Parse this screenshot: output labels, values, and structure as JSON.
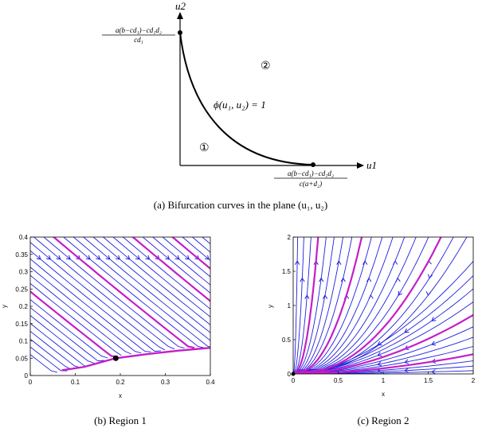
{
  "panel_a": {
    "y_axis_label": "u2",
    "x_axis_label": "u1",
    "top_label_num": "a(b−cd₁)−cd₁d₂",
    "top_label_den": "cd₁",
    "bottom_label_num": "a(b−cd₁)−cd₁d₂",
    "bottom_label_den": "c(a+d₂)",
    "curve_label": "ϕ(u₁, u₂) = 1",
    "region1_label": "①",
    "region2_label": "②",
    "caption": "(a)  Bifurcation curves in the plane (u₁, u₂)"
  },
  "panel_b": {
    "caption": "(b)  Region 1",
    "xlabel": "x",
    "ylabel": "y",
    "x_ticks": [
      "0",
      "0.1",
      "0.2",
      "0.3",
      "0.4"
    ],
    "y_ticks": [
      "0",
      "0.05",
      "0.1",
      "0.15",
      "0.2",
      "0.25",
      "0.3",
      "0.35",
      "0.4"
    ]
  },
  "panel_c": {
    "caption": "(c)  Region 2",
    "xlabel": "x",
    "ylabel": "y",
    "x_ticks": [
      "0",
      "0.5",
      "1",
      "1.5",
      "2"
    ],
    "y_ticks": [
      "0",
      "0.5",
      "1",
      "1.5",
      "2"
    ]
  },
  "colors": {
    "stream": "#1f1fe0",
    "highlight": "#c21fc8",
    "curve": "#000000"
  },
  "chart_data": [
    {
      "type": "line",
      "title": "",
      "xlabel": "x",
      "ylabel": "y",
      "xlim": [
        0,
        0.4
      ],
      "ylim": [
        0,
        0.4
      ],
      "equilibrium": [
        0.19,
        0.05
      ],
      "series": [
        {
          "x": [
            0.07,
            0.12,
            0.19,
            0.26,
            0.33,
            0.4
          ],
          "y": [
            0.015,
            0.025,
            0.05,
            0.062,
            0.072,
            0.08
          ]
        }
      ]
    },
    {
      "type": "line",
      "title": "",
      "xlabel": "x",
      "ylabel": "y",
      "xlim": [
        0,
        2
      ],
      "ylim": [
        0,
        2
      ],
      "equilibrium": [
        0,
        0
      ]
    }
  ]
}
